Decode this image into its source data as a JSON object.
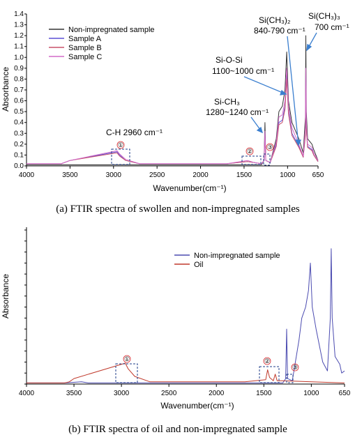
{
  "chart_data": [
    {
      "type": "line",
      "caption": "(a) FTIR spectra of swollen and non-impregnated samples",
      "xlabel": "Wavenumber(cm⁻¹)",
      "ylabel": "Absorbance",
      "xlim": [
        4000,
        650
      ],
      "ylim": [
        0,
        1.4
      ],
      "x_reversed": true,
      "xticks": [
        4000,
        3500,
        3000,
        2500,
        2000,
        1500,
        1000,
        650
      ],
      "yticks": [
        0.0,
        0.1,
        0.2,
        0.3,
        0.4,
        0.5,
        0.6,
        0.7,
        0.8,
        0.9,
        1.0,
        1.1,
        1.2,
        1.3,
        1.4
      ],
      "legend_position": "top-left",
      "series": [
        {
          "name": "Non-impregnated sample",
          "color": "#333333",
          "points": [
            [
              4000,
              0.01
            ],
            [
              3600,
              0.01
            ],
            [
              3350,
              0.01
            ],
            [
              3200,
              0.01
            ],
            [
              2000,
              0.01
            ],
            [
              1600,
              0.01
            ],
            [
              1300,
              0.01
            ],
            [
              1270,
              0.05
            ],
            [
              1260,
              0.4
            ],
            [
              1250,
              0.05
            ],
            [
              1200,
              0.03
            ],
            [
              1130,
              0.25
            ],
            [
              1100,
              0.5
            ],
            [
              1060,
              0.55
            ],
            [
              1030,
              0.7
            ],
            [
              1010,
              1.05
            ],
            [
              990,
              0.6
            ],
            [
              950,
              0.4
            ],
            [
              870,
              0.25
            ],
            [
              820,
              0.12
            ],
            [
              795,
              0.45
            ],
            [
              790,
              1.2
            ],
            [
              785,
              0.5
            ],
            [
              770,
              0.25
            ],
            [
              720,
              0.2
            ],
            [
              700,
              0.15
            ],
            [
              650,
              0.05
            ]
          ]
        },
        {
          "name": "Sample A",
          "color": "#5b4fd6",
          "points": [
            [
              4000,
              0.02
            ],
            [
              3600,
              0.02
            ],
            [
              3500,
              0.05
            ],
            [
              2960,
              0.13
            ],
            [
              2930,
              0.1
            ],
            [
              2860,
              0.05
            ],
            [
              2700,
              0.02
            ],
            [
              2000,
              0.02
            ],
            [
              1700,
              0.02
            ],
            [
              1460,
              0.04
            ],
            [
              1380,
              0.03
            ],
            [
              1300,
              0.02
            ],
            [
              1270,
              0.05
            ],
            [
              1260,
              0.3
            ],
            [
              1250,
              0.05
            ],
            [
              1200,
              0.03
            ],
            [
              1130,
              0.2
            ],
            [
              1100,
              0.4
            ],
            [
              1060,
              0.42
            ],
            [
              1030,
              0.55
            ],
            [
              1010,
              0.85
            ],
            [
              990,
              0.5
            ],
            [
              950,
              0.3
            ],
            [
              870,
              0.18
            ],
            [
              820,
              0.08
            ],
            [
              795,
              0.3
            ],
            [
              790,
              0.85
            ],
            [
              785,
              0.35
            ],
            [
              770,
              0.18
            ],
            [
              720,
              0.15
            ],
            [
              700,
              0.1
            ],
            [
              650,
              0.04
            ]
          ]
        },
        {
          "name": "Sample B",
          "color": "#c8506a",
          "points": [
            [
              4000,
              0.02
            ],
            [
              3600,
              0.02
            ],
            [
              3500,
              0.05
            ],
            [
              2960,
              0.12
            ],
            [
              2930,
              0.09
            ],
            [
              2860,
              0.05
            ],
            [
              2700,
              0.02
            ],
            [
              2000,
              0.02
            ],
            [
              1700,
              0.02
            ],
            [
              1460,
              0.04
            ],
            [
              1380,
              0.03
            ],
            [
              1300,
              0.02
            ],
            [
              1270,
              0.05
            ],
            [
              1260,
              0.28
            ],
            [
              1250,
              0.05
            ],
            [
              1200,
              0.03
            ],
            [
              1130,
              0.18
            ],
            [
              1100,
              0.38
            ],
            [
              1060,
              0.4
            ],
            [
              1030,
              0.52
            ],
            [
              1010,
              0.8
            ],
            [
              990,
              0.48
            ],
            [
              950,
              0.28
            ],
            [
              870,
              0.17
            ],
            [
              820,
              0.08
            ],
            [
              795,
              0.28
            ],
            [
              790,
              0.8
            ],
            [
              785,
              0.33
            ],
            [
              770,
              0.17
            ],
            [
              720,
              0.14
            ],
            [
              700,
              0.1
            ],
            [
              650,
              0.04
            ]
          ]
        },
        {
          "name": "Sample C",
          "color": "#d26ac8",
          "points": [
            [
              4000,
              0.02
            ],
            [
              3600,
              0.02
            ],
            [
              3500,
              0.05
            ],
            [
              2960,
              0.14
            ],
            [
              2930,
              0.11
            ],
            [
              2860,
              0.06
            ],
            [
              2700,
              0.02
            ],
            [
              2000,
              0.02
            ],
            [
              1700,
              0.02
            ],
            [
              1460,
              0.05
            ],
            [
              1380,
              0.03
            ],
            [
              1300,
              0.02
            ],
            [
              1270,
              0.05
            ],
            [
              1260,
              0.32
            ],
            [
              1250,
              0.05
            ],
            [
              1200,
              0.03
            ],
            [
              1130,
              0.22
            ],
            [
              1100,
              0.45
            ],
            [
              1060,
              0.47
            ],
            [
              1030,
              0.6
            ],
            [
              1010,
              0.9
            ],
            [
              990,
              0.55
            ],
            [
              950,
              0.35
            ],
            [
              870,
              0.2
            ],
            [
              820,
              0.09
            ],
            [
              795,
              0.35
            ],
            [
              790,
              0.9
            ],
            [
              785,
              0.4
            ],
            [
              770,
              0.2
            ],
            [
              720,
              0.17
            ],
            [
              700,
              0.12
            ],
            [
              650,
              0.05
            ]
          ]
        }
      ],
      "annotations": [
        {
          "text": "C-H  2960 cm⁻¹"
        },
        {
          "text": "Si-CH₃"
        },
        {
          "text": "1280~1240 cm⁻¹"
        },
        {
          "text": "Si-O-Si"
        },
        {
          "text": "1100~1000  cm⁻¹"
        },
        {
          "text": "Si(CH₃)₂"
        },
        {
          "text": "840-790 cm⁻¹"
        },
        {
          "text": "Si(CH₃)₃"
        },
        {
          "text": "700 cm⁻¹"
        }
      ],
      "region_markers": [
        "①",
        "②",
        "③"
      ]
    },
    {
      "type": "line",
      "caption": "(b) FTIR spectra of oil and non-impregnated sample",
      "xlabel": "Wavenumber(cm⁻¹)",
      "ylabel": "Absorbance",
      "xlim": [
        4000,
        650
      ],
      "ylim": [
        0,
        1.4
      ],
      "x_reversed": true,
      "xticks": [
        4000,
        3500,
        3000,
        2500,
        2000,
        1500,
        1000,
        650
      ],
      "legend_position": "top-center",
      "series": [
        {
          "name": "Non-impregnated sample",
          "color": "#4a4ab0",
          "points": [
            [
              4000,
              0.01
            ],
            [
              3600,
              0.01
            ],
            [
              3420,
              0.02
            ],
            [
              3350,
              0.01
            ],
            [
              3200,
              0.01
            ],
            [
              2000,
              0.01
            ],
            [
              1600,
              0.01
            ],
            [
              1300,
              0.01
            ],
            [
              1270,
              0.05
            ],
            [
              1260,
              0.5
            ],
            [
              1250,
              0.05
            ],
            [
              1200,
              0.03
            ],
            [
              1130,
              0.4
            ],
            [
              1100,
              0.6
            ],
            [
              1060,
              0.7
            ],
            [
              1030,
              0.85
            ],
            [
              1010,
              1.1
            ],
            [
              990,
              0.7
            ],
            [
              950,
              0.5
            ],
            [
              880,
              0.2
            ],
            [
              830,
              0.12
            ],
            [
              800,
              0.6
            ],
            [
              790,
              1.23
            ],
            [
              780,
              0.6
            ],
            [
              750,
              0.25
            ],
            [
              700,
              0.18
            ],
            [
              680,
              0.1
            ],
            [
              650,
              0.12
            ]
          ]
        },
        {
          "name": "Oil",
          "color": "#c0392b",
          "points": [
            [
              4000,
              0.01
            ],
            [
              3600,
              0.01
            ],
            [
              3550,
              0.02
            ],
            [
              3500,
              0.05
            ],
            [
              2960,
              0.19
            ],
            [
              2930,
              0.14
            ],
            [
              2860,
              0.07
            ],
            [
              2700,
              0.02
            ],
            [
              2000,
              0.02
            ],
            [
              1700,
              0.02
            ],
            [
              1480,
              0.04
            ],
            [
              1460,
              0.13
            ],
            [
              1440,
              0.06
            ],
            [
              1400,
              0.03
            ],
            [
              1380,
              0.09
            ],
            [
              1360,
              0.03
            ],
            [
              1300,
              0.03
            ],
            [
              1000,
              0.02
            ],
            [
              650,
              0.01
            ]
          ]
        }
      ],
      "region_markers": [
        "①",
        "②",
        "③"
      ]
    }
  ]
}
